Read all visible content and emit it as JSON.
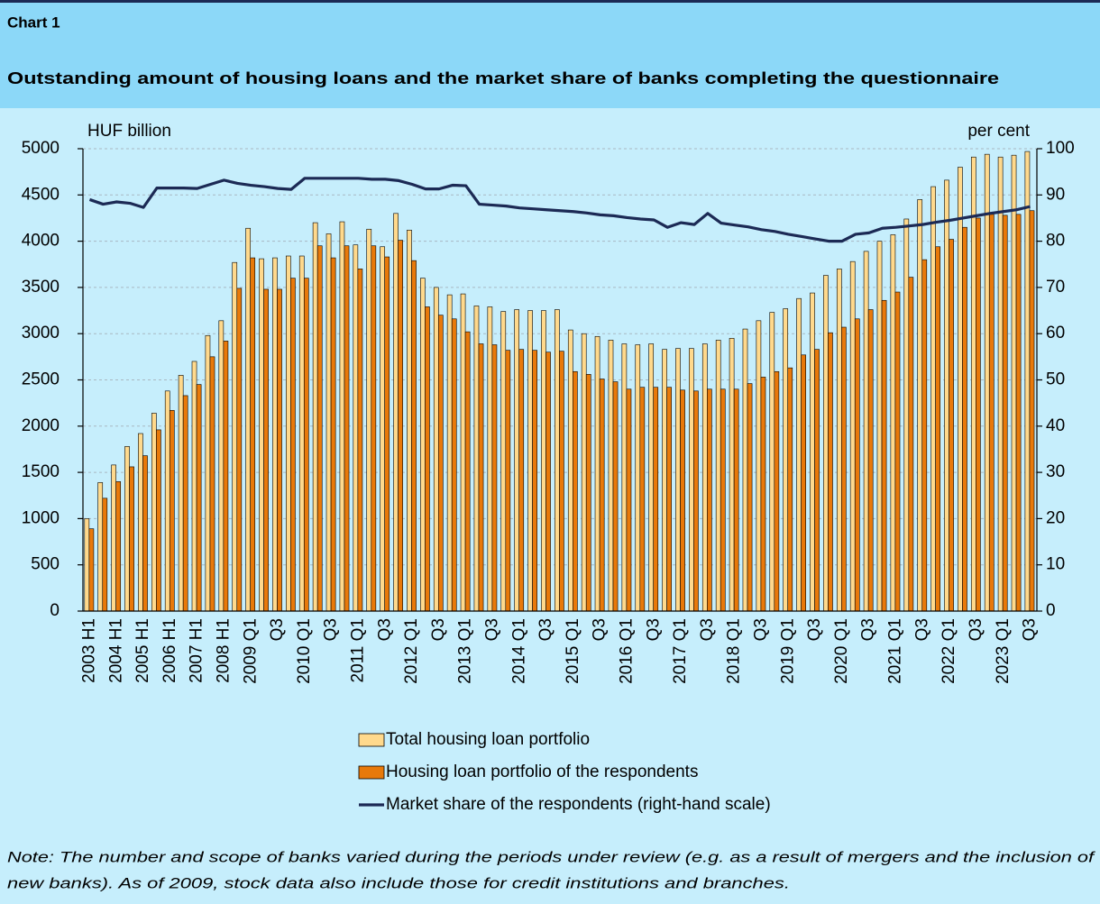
{
  "header": {
    "label": "Chart 1",
    "title": "Outstanding amount of housing loans and the market share of banks completing the questionnaire"
  },
  "chart_data": {
    "type": "combo",
    "y_label": "HUF billion",
    "y2_label": "per cent",
    "categories": [
      "2003 H1",
      null,
      "2004 H1",
      null,
      "2005 H1",
      null,
      "2006 H1",
      null,
      "2007 H1",
      null,
      "2008 H1",
      null,
      "2009 Q1",
      null,
      "Q3",
      null,
      "2010 Q1",
      null,
      "Q3",
      null,
      "2011 Q1",
      null,
      "Q3",
      null,
      "2012 Q1",
      null,
      "Q3",
      null,
      "2013 Q1",
      null,
      "Q3",
      null,
      "2014 Q1",
      null,
      "Q3",
      null,
      "2015 Q1",
      null,
      "Q3",
      null,
      "2016 Q1",
      null,
      "Q3",
      null,
      "2017 Q1",
      null,
      "Q3",
      null,
      "2018 Q1",
      null,
      "Q3",
      null,
      "2019 Q1",
      null,
      "Q3",
      null,
      "2020 Q1",
      null,
      "Q3",
      null,
      "2021 Q1",
      null,
      "Q3",
      null,
      "2022 Q1",
      null,
      "Q3",
      null,
      "2023 Q1",
      null,
      "Q3"
    ],
    "series": [
      {
        "name": "Total housing loan portfolio",
        "type": "bar",
        "color": "#ffd98c",
        "values": [
          1000,
          1390,
          1580,
          1780,
          1920,
          2140,
          2380,
          2550,
          2700,
          2980,
          3140,
          3770,
          4140,
          3810,
          3820,
          3840,
          3840,
          4200,
          4080,
          4210,
          3960,
          4130,
          3940,
          4300,
          4120,
          3600,
          3500,
          3420,
          3430,
          3300,
          3290,
          3240,
          3260,
          3250,
          3250,
          3260,
          3040,
          3000,
          2970,
          2930,
          2890,
          2880,
          2890,
          2830,
          2840,
          2840,
          2890,
          2930,
          2950,
          3050,
          3140,
          3230,
          3270,
          3380,
          3440,
          3630,
          3700,
          3780,
          3890,
          4000,
          4070,
          4240,
          4450,
          4590,
          4660,
          4800,
          4910,
          4940,
          4910,
          4930,
          4970
        ]
      },
      {
        "name": "Housing loan portfolio of the respondents",
        "type": "bar",
        "color": "#e8790a",
        "values": [
          890,
          1220,
          1400,
          1560,
          1680,
          1960,
          2170,
          2330,
          2450,
          2750,
          2920,
          3490,
          3820,
          3480,
          3480,
          3600,
          3600,
          3950,
          3820,
          3950,
          3700,
          3950,
          3830,
          4010,
          3790,
          3290,
          3200,
          3160,
          3020,
          2890,
          2880,
          2820,
          2830,
          2820,
          2800,
          2810,
          2590,
          2560,
          2510,
          2480,
          2400,
          2420,
          2420,
          2420,
          2390,
          2380,
          2400,
          2400,
          2400,
          2460,
          2530,
          2590,
          2630,
          2770,
          2830,
          3010,
          3070,
          3160,
          3260,
          3360,
          3450,
          3610,
          3800,
          3940,
          4020,
          4150,
          4250,
          4290,
          4280,
          4290,
          4330
        ]
      },
      {
        "name": "Market share of the respondents (right-hand scale)",
        "type": "line",
        "axis": "y2",
        "color": "#1c2a55",
        "values": [
          89,
          88,
          88.5,
          88.2,
          87.3,
          91.5,
          91.5,
          91.5,
          91.4,
          92.3,
          93.2,
          92.5,
          92.1,
          91.8,
          91.4,
          91.2,
          93.6,
          93.6,
          93.6,
          93.6,
          93.6,
          93.4,
          93.4,
          93.1,
          92.3,
          91.3,
          91.3,
          92.1,
          92,
          88,
          87.8,
          87.6,
          87.2,
          87,
          86.8,
          86.6,
          86.4,
          86.1,
          85.7,
          85.5,
          85.1,
          84.8,
          84.6,
          83,
          84,
          83.6,
          86,
          83.9,
          83.5,
          83.1,
          82.5,
          82.1,
          81.5,
          81,
          80.5,
          80,
          80,
          81.5,
          81.8,
          82.8,
          83,
          83.3,
          83.6,
          84.1,
          84.5,
          85,
          85.5,
          86,
          86.4,
          86.8,
          87.5
        ]
      }
    ],
    "ylim": [
      0,
      5000
    ],
    "yticks": [
      0,
      500,
      1000,
      1500,
      2000,
      2500,
      3000,
      3500,
      4000,
      4500,
      5000
    ],
    "y2lim": [
      0,
      100
    ],
    "y2ticks": [
      0,
      10,
      20,
      30,
      40,
      50,
      60,
      70,
      80,
      90,
      100
    ],
    "grid": true,
    "legend": "bottom"
  },
  "note": [
    "Note: The number and scope of banks varied during the periods under review (e.g. as a result of mergers and the inclusion of",
    "new banks). As of 2009, stock data also include those for credit institutions and branches."
  ]
}
